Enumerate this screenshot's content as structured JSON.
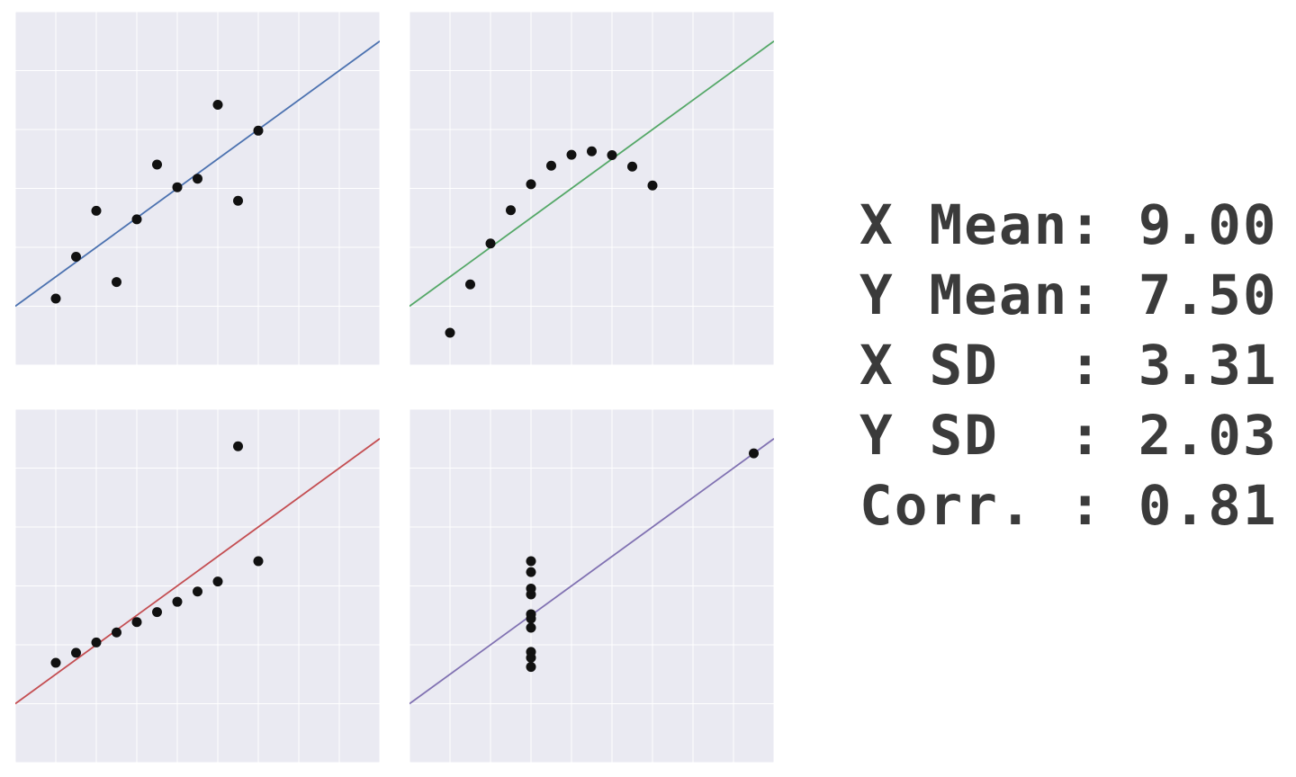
{
  "chart_data": [
    {
      "type": "scatter",
      "line_color": "#4c72b0",
      "xlim": [
        2,
        20
      ],
      "ylim": [
        2,
        14
      ],
      "fit_line": {
        "slope": 0.5,
        "intercept": 3.0
      },
      "points": [
        [
          10,
          8.04
        ],
        [
          8,
          6.95
        ],
        [
          13,
          7.58
        ],
        [
          9,
          8.81
        ],
        [
          11,
          8.33
        ],
        [
          14,
          9.96
        ],
        [
          6,
          7.24
        ],
        [
          4,
          4.26
        ],
        [
          12,
          10.84
        ],
        [
          7,
          4.82
        ],
        [
          5,
          5.68
        ]
      ]
    },
    {
      "type": "scatter",
      "line_color": "#55a868",
      "xlim": [
        2,
        20
      ],
      "ylim": [
        2,
        14
      ],
      "fit_line": {
        "slope": 0.5,
        "intercept": 3.0
      },
      "points": [
        [
          10,
          9.14
        ],
        [
          8,
          8.14
        ],
        [
          13,
          8.74
        ],
        [
          9,
          8.77
        ],
        [
          11,
          9.26
        ],
        [
          14,
          8.1
        ],
        [
          6,
          6.13
        ],
        [
          4,
          3.1
        ],
        [
          12,
          9.13
        ],
        [
          7,
          7.26
        ],
        [
          5,
          4.74
        ]
      ]
    },
    {
      "type": "scatter",
      "line_color": "#c44e52",
      "xlim": [
        2,
        20
      ],
      "ylim": [
        2,
        14
      ],
      "fit_line": {
        "slope": 0.5,
        "intercept": 3.0
      },
      "points": [
        [
          10,
          7.46
        ],
        [
          8,
          6.77
        ],
        [
          13,
          12.74
        ],
        [
          9,
          7.11
        ],
        [
          11,
          7.81
        ],
        [
          14,
          8.84
        ],
        [
          6,
          6.08
        ],
        [
          4,
          5.39
        ],
        [
          12,
          8.15
        ],
        [
          7,
          6.42
        ],
        [
          5,
          5.73
        ]
      ]
    },
    {
      "type": "scatter",
      "line_color": "#8172b2",
      "xlim": [
        2,
        20
      ],
      "ylim": [
        2,
        14
      ],
      "fit_line": {
        "slope": 0.5,
        "intercept": 3.0
      },
      "points": [
        [
          8,
          6.58
        ],
        [
          8,
          5.76
        ],
        [
          8,
          7.71
        ],
        [
          8,
          8.84
        ],
        [
          8,
          8.47
        ],
        [
          8,
          7.04
        ],
        [
          8,
          5.25
        ],
        [
          19,
          12.5
        ],
        [
          8,
          5.56
        ],
        [
          8,
          7.91
        ],
        [
          8,
          6.89
        ]
      ]
    }
  ],
  "stats": {
    "lines": [
      "X Mean: 9.00",
      "Y Mean: 7.50",
      "X SD  : 3.31",
      "Y SD  : 2.03",
      "Corr. : 0.81"
    ]
  }
}
